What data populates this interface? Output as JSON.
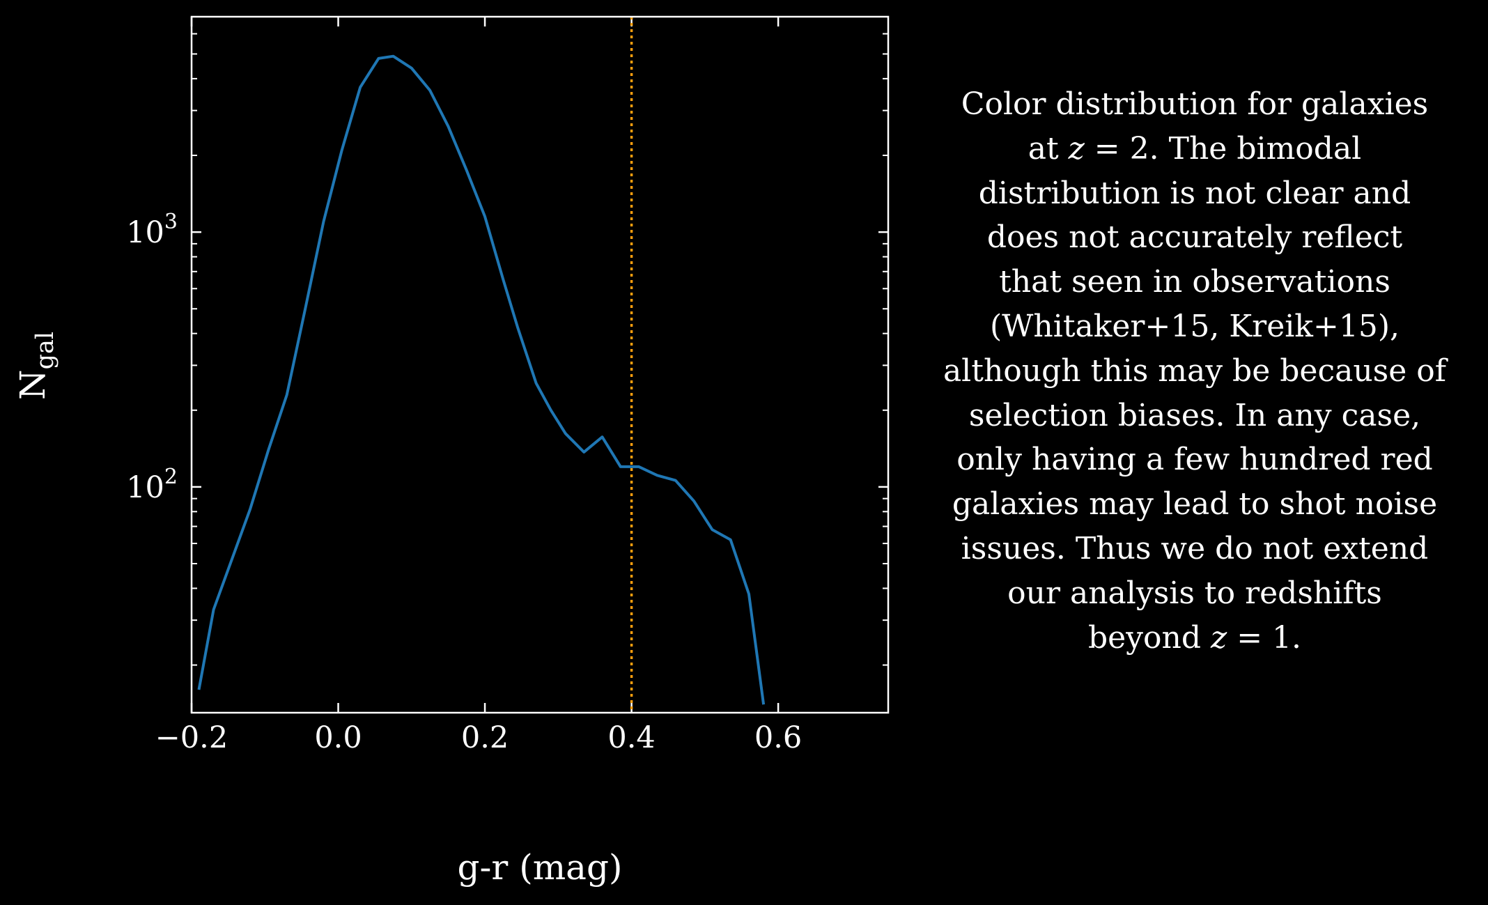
{
  "chart_data": {
    "type": "line",
    "title": "",
    "xlabel": "g-r (mag)",
    "ylabel_main": "N",
    "ylabel_sub": "gal",
    "xlim": [
      -0.2,
      0.75
    ],
    "ylim": [
      13,
      7000
    ],
    "yscale": "log",
    "x_ticks": [
      -0.2,
      0.0,
      0.2,
      0.4,
      0.6
    ],
    "x_tick_labels": [
      "−0.2",
      "0.0",
      "0.2",
      "0.4",
      "0.6"
    ],
    "y_major_ticks": [
      {
        "value": 100,
        "base": "10",
        "exp": "2"
      },
      {
        "value": 1000,
        "base": "10",
        "exp": "3"
      }
    ],
    "grid": false,
    "series": [
      {
        "color": "#1f77b4",
        "x": [
          -0.19,
          -0.17,
          -0.14,
          -0.12,
          -0.095,
          -0.07,
          -0.045,
          -0.02,
          0.005,
          0.03,
          0.055,
          0.075,
          0.1,
          0.125,
          0.15,
          0.175,
          0.2,
          0.225,
          0.245,
          0.27,
          0.29,
          0.31,
          0.335,
          0.36,
          0.385,
          0.41,
          0.435,
          0.46,
          0.485,
          0.51,
          0.535,
          0.56,
          0.58
        ],
        "y": [
          16,
          33,
          57,
          82,
          140,
          230,
          500,
          1100,
          2100,
          3700,
          4800,
          4900,
          4400,
          3600,
          2600,
          1750,
          1150,
          650,
          420,
          255,
          200,
          162,
          137,
          157,
          120,
          120,
          111,
          106,
          88,
          68,
          62,
          38,
          14
        ]
      }
    ],
    "vertical_lines": [
      {
        "x": 0.4,
        "color": "#ff9f0e",
        "style": "dotted"
      }
    ]
  },
  "caption": {
    "lines": [
      [
        {
          "t": "Color distribution for galaxies"
        }
      ],
      [
        {
          "t": "at "
        },
        {
          "t": "z",
          "i": true
        },
        {
          "t": " = 2. The bimodal"
        }
      ],
      [
        {
          "t": "distribution is not clear and"
        }
      ],
      [
        {
          "t": "does not accurately reflect"
        }
      ],
      [
        {
          "t": "that seen in observations"
        }
      ],
      [
        {
          "t": "(Whitaker+15, Kreik+15),"
        }
      ],
      [
        {
          "t": "although this may be because of"
        }
      ],
      [
        {
          "t": "selection biases. In any case,"
        }
      ],
      [
        {
          "t": "only having a few hundred red"
        }
      ],
      [
        {
          "t": "galaxies may lead to shot noise"
        }
      ],
      [
        {
          "t": "issues. Thus we do not extend"
        }
      ],
      [
        {
          "t": "our analysis to redshifts"
        }
      ],
      [
        {
          "t": "beyond "
        },
        {
          "t": "z",
          "i": true
        },
        {
          "t": " = 1."
        }
      ]
    ]
  }
}
